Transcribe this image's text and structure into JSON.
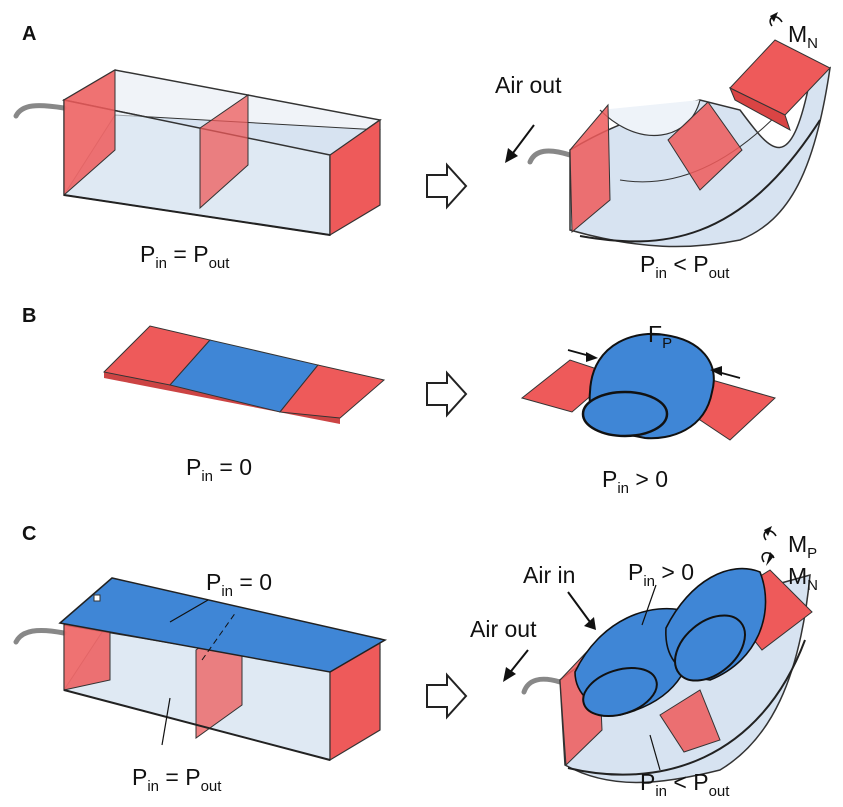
{
  "panels": {
    "a": {
      "letter": "A",
      "left_label": {
        "p": "P",
        "sub": "in",
        "op": " = P",
        "sub2": "out"
      },
      "air_out": "Air out",
      "right_label": {
        "p": "P",
        "sub": "in",
        "op": " < P",
        "sub2": "out"
      },
      "moment": {
        "m": "M",
        "sub": "N"
      }
    },
    "b": {
      "letter": "B",
      "left_label": {
        "p": "P",
        "sub": "in",
        "op": " = 0"
      },
      "force": {
        "f": "F",
        "sub": "P"
      },
      "right_label": {
        "p": "P",
        "sub": "in",
        "op": " > 0"
      }
    },
    "c": {
      "letter": "C",
      "top_label": {
        "p": "P",
        "sub": "in",
        "op": " = 0"
      },
      "left_label": {
        "p": "P",
        "sub": "in",
        "op": " = P",
        "sub2": "out"
      },
      "air_in": "Air in",
      "air_out": "Air out",
      "inner_label": {
        "p": "P",
        "sub": "in",
        "op": " > 0"
      },
      "right_label": {
        "p": "P",
        "sub": "in",
        "op": " < P",
        "sub2": "out"
      },
      "moment_p": {
        "m": "M",
        "sub": "P"
      },
      "moment_n": {
        "m": "M",
        "sub": "N"
      }
    }
  },
  "colors": {
    "red": "#ee5a5a",
    "blue": "#3f86d6",
    "glass": "#dfe8f3",
    "outline": "#222222"
  }
}
